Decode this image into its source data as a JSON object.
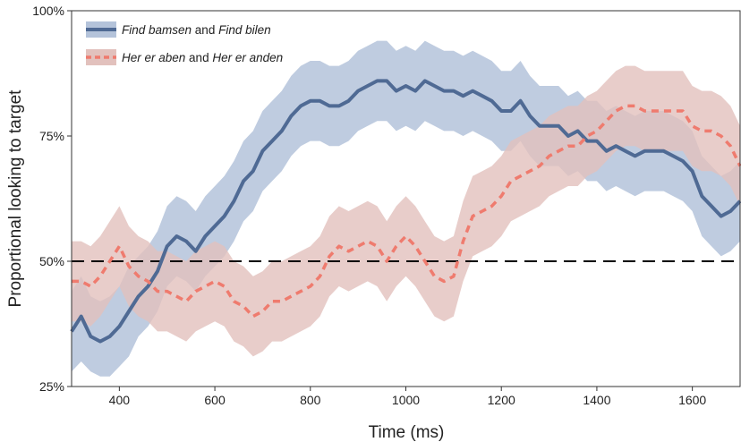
{
  "chart_data": {
    "type": "line",
    "xlabel": "Time (ms)",
    "ylabel": "Proportional looking to target",
    "xlim": [
      300,
      1700
    ],
    "ylim": [
      25,
      100
    ],
    "x_ticks": [
      400,
      600,
      800,
      1000,
      1200,
      1400,
      1600
    ],
    "x_tick_labels": [
      "400",
      "600",
      "800",
      "1000",
      "1200",
      "1400",
      "1600"
    ],
    "y_ticks": [
      25,
      50,
      75,
      100
    ],
    "y_tick_labels": [
      "25%",
      "50%",
      "75%",
      "100%"
    ],
    "reference_line": {
      "y": 50,
      "style": "dashed",
      "color": "#000000"
    },
    "legend_position": "top-left",
    "series": [
      {
        "name": "Find bamsen and Find bilen",
        "legend_parts": [
          {
            "text": "Find bamsen",
            "italic": true
          },
          {
            "text": " and ",
            "italic": false
          },
          {
            "text": "Find bilen",
            "italic": true
          }
        ],
        "color": "#4f6a94",
        "band_color": "#b4c3da",
        "line_style": "solid",
        "x": [
          300,
          320,
          340,
          360,
          380,
          400,
          420,
          440,
          460,
          480,
          500,
          520,
          540,
          560,
          580,
          600,
          620,
          640,
          660,
          680,
          700,
          720,
          740,
          760,
          780,
          800,
          820,
          840,
          860,
          880,
          900,
          920,
          940,
          960,
          980,
          1000,
          1020,
          1040,
          1060,
          1080,
          1100,
          1120,
          1140,
          1160,
          1180,
          1200,
          1220,
          1240,
          1260,
          1280,
          1300,
          1320,
          1340,
          1360,
          1380,
          1400,
          1420,
          1440,
          1460,
          1480,
          1500,
          1520,
          1540,
          1560,
          1580,
          1600,
          1620,
          1640,
          1660,
          1680,
          1700
        ],
        "y": [
          36,
          39,
          35,
          34,
          35,
          37,
          40,
          43,
          45,
          48,
          53,
          55,
          54,
          52,
          55,
          57,
          59,
          62,
          66,
          68,
          72,
          74,
          76,
          79,
          81,
          82,
          82,
          81,
          81,
          82,
          84,
          85,
          86,
          86,
          84,
          85,
          84,
          86,
          85,
          84,
          84,
          83,
          84,
          83,
          82,
          80,
          80,
          82,
          79,
          77,
          77,
          77,
          75,
          76,
          74,
          74,
          72,
          73,
          72,
          71,
          72,
          72,
          72,
          71,
          70,
          68,
          63,
          61,
          59,
          60,
          62
        ],
        "lower": [
          28,
          30,
          28,
          27,
          27,
          29,
          31,
          35,
          37,
          40,
          45,
          47,
          46,
          44,
          47,
          49,
          51,
          54,
          58,
          60,
          64,
          66,
          68,
          71,
          73,
          74,
          74,
          73,
          73,
          74,
          76,
          77,
          78,
          78,
          76,
          77,
          76,
          78,
          77,
          76,
          76,
          75,
          76,
          75,
          74,
          72,
          72,
          74,
          71,
          69,
          69,
          69,
          67,
          68,
          66,
          66,
          64,
          65,
          64,
          63,
          64,
          64,
          64,
          63,
          62,
          60,
          55,
          53,
          51,
          52,
          54
        ],
        "upper": [
          44,
          47,
          43,
          42,
          43,
          45,
          49,
          51,
          53,
          56,
          61,
          63,
          62,
          60,
          63,
          65,
          67,
          70,
          74,
          76,
          80,
          82,
          84,
          87,
          89,
          90,
          90,
          89,
          89,
          90,
          92,
          93,
          94,
          94,
          92,
          93,
          92,
          94,
          93,
          92,
          92,
          91,
          92,
          91,
          90,
          88,
          88,
          90,
          87,
          85,
          85,
          85,
          83,
          84,
          82,
          82,
          80,
          81,
          80,
          79,
          80,
          80,
          80,
          79,
          78,
          76,
          71,
          69,
          67,
          68,
          70
        ]
      },
      {
        "name": "Her er aben and Her er anden",
        "legend_parts": [
          {
            "text": "Her er aben",
            "italic": true
          },
          {
            "text": " and ",
            "italic": false
          },
          {
            "text": "Her er anden",
            "italic": true
          }
        ],
        "color": "#ef7b6e",
        "band_color": "#e2c1bd",
        "line_style": "dashed",
        "x": [
          300,
          320,
          340,
          360,
          380,
          400,
          420,
          440,
          460,
          480,
          500,
          520,
          540,
          560,
          580,
          600,
          620,
          640,
          660,
          680,
          700,
          720,
          740,
          760,
          780,
          800,
          820,
          840,
          860,
          880,
          900,
          920,
          940,
          960,
          980,
          1000,
          1020,
          1040,
          1060,
          1080,
          1100,
          1120,
          1140,
          1160,
          1180,
          1200,
          1220,
          1240,
          1260,
          1280,
          1300,
          1320,
          1340,
          1360,
          1380,
          1400,
          1420,
          1440,
          1460,
          1480,
          1500,
          1520,
          1540,
          1560,
          1580,
          1600,
          1620,
          1640,
          1660,
          1680,
          1700
        ],
        "y": [
          46,
          46,
          45,
          47,
          50,
          53,
          49,
          47,
          46,
          44,
          44,
          43,
          42,
          44,
          45,
          46,
          45,
          42,
          41,
          39,
          40,
          42,
          42,
          43,
          44,
          45,
          47,
          51,
          53,
          52,
          53,
          54,
          53,
          50,
          53,
          55,
          53,
          50,
          47,
          46,
          47,
          54,
          59,
          60,
          61,
          63,
          66,
          67,
          68,
          69,
          71,
          72,
          73,
          73,
          75,
          76,
          78,
          80,
          81,
          81,
          80,
          80,
          80,
          80,
          80,
          77,
          76,
          76,
          75,
          73,
          69
        ],
        "lower": [
          38,
          38,
          37,
          39,
          42,
          45,
          41,
          39,
          38,
          36,
          36,
          35,
          34,
          36,
          37,
          38,
          37,
          34,
          33,
          31,
          32,
          34,
          34,
          35,
          36,
          37,
          39,
          43,
          45,
          44,
          45,
          46,
          45,
          42,
          45,
          47,
          45,
          42,
          39,
          38,
          39,
          46,
          51,
          52,
          53,
          55,
          58,
          59,
          60,
          61,
          63,
          64,
          65,
          65,
          67,
          68,
          70,
          72,
          73,
          73,
          72,
          72,
          72,
          72,
          72,
          69,
          68,
          68,
          67,
          65,
          61
        ],
        "upper": [
          54,
          54,
          53,
          55,
          58,
          61,
          57,
          55,
          54,
          52,
          52,
          51,
          50,
          52,
          53,
          54,
          53,
          50,
          49,
          47,
          48,
          50,
          50,
          51,
          52,
          53,
          55,
          59,
          61,
          60,
          61,
          62,
          61,
          58,
          61,
          63,
          61,
          58,
          55,
          54,
          55,
          62,
          67,
          68,
          69,
          71,
          74,
          75,
          76,
          77,
          79,
          80,
          81,
          81,
          83,
          84,
          86,
          88,
          89,
          89,
          88,
          88,
          88,
          88,
          88,
          85,
          84,
          84,
          83,
          81,
          77
        ]
      }
    ]
  }
}
